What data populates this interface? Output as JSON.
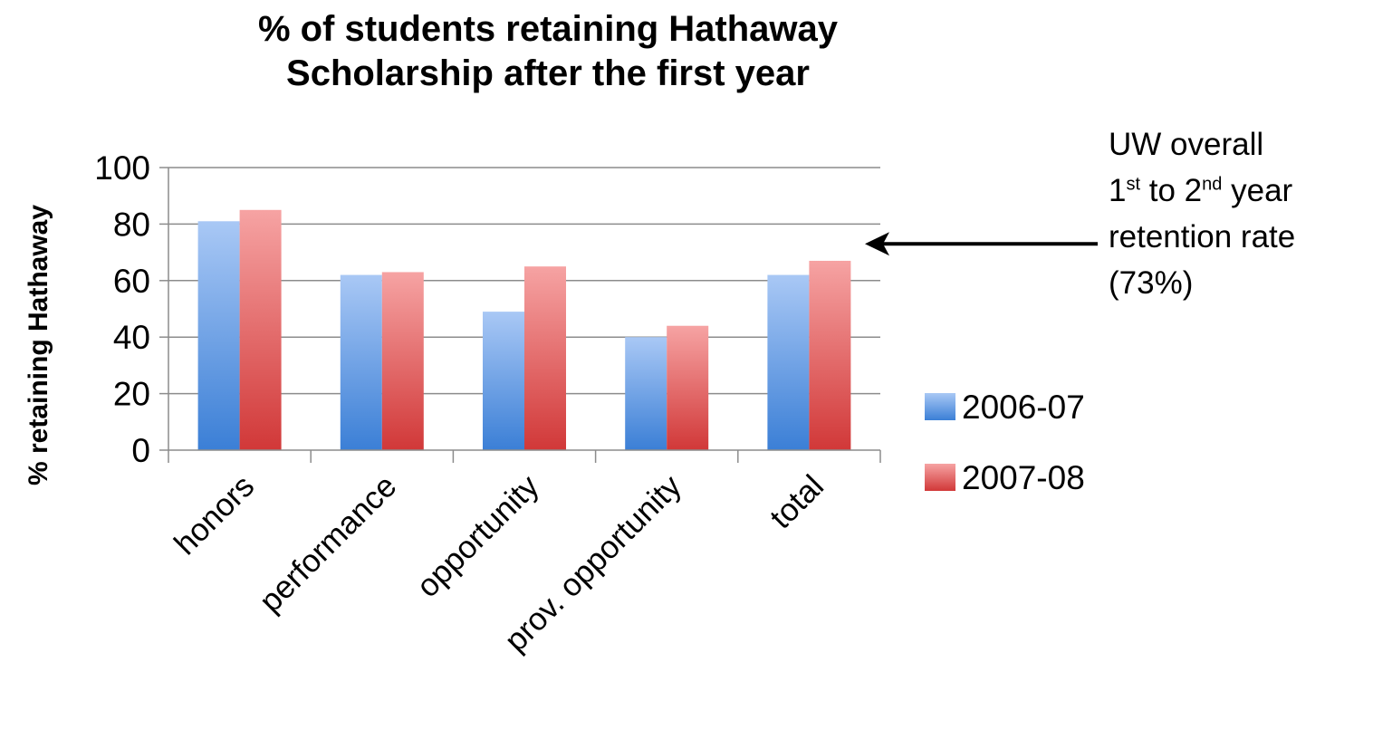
{
  "title_lines": [
    "% of students retaining Hathaway",
    "Scholarship after the first year"
  ],
  "annotation": {
    "line1": "UW overall",
    "line2": {
      "a": "1",
      "a_sup": "st",
      "b": " to 2",
      "b_sup": "nd",
      "c": " year"
    },
    "line3": "retention rate",
    "line4": "(73%)"
  },
  "chart_data": {
    "type": "bar",
    "title": "% of students retaining Hathaway Scholarship after the first year",
    "xlabel": "",
    "ylabel": "% retaining Hathaway",
    "categories": [
      "honors",
      "performance",
      "opportunity",
      "prov. opportunity",
      "total"
    ],
    "series": [
      {
        "name": "2006-07",
        "values": [
          81,
          62,
          49,
          40,
          62
        ],
        "color_top": "#a9c8f5",
        "color_bottom": "#3b7fd6"
      },
      {
        "name": "2007-08",
        "values": [
          85,
          63,
          65,
          44,
          67
        ],
        "color_top": "#f6a3a3",
        "color_bottom": "#d13838"
      }
    ],
    "ylim": [
      0,
      100
    ],
    "yticks": [
      0,
      20,
      40,
      60,
      80,
      100
    ],
    "grid": true,
    "legend_position": "right",
    "reference": {
      "value": 73,
      "label": "UW overall 1st to 2nd year retention rate (73%)",
      "style": "arrow"
    }
  }
}
